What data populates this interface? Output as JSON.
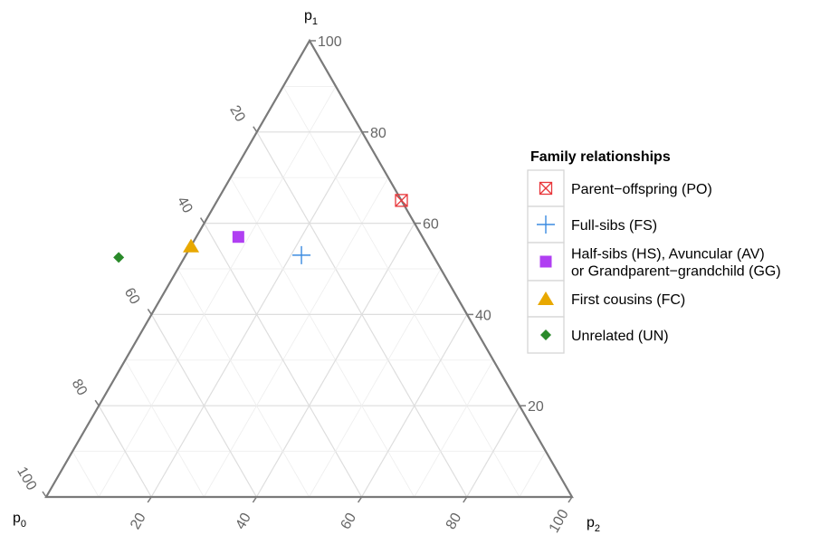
{
  "chart_data": {
    "type": "ternary-scatter",
    "axes": {
      "p0": {
        "label": "p",
        "sub": "0",
        "ticks": [
          20,
          40,
          60,
          80,
          100
        ],
        "tick_labels": [
          "20",
          "40",
          "60",
          "80",
          "100"
        ]
      },
      "p1": {
        "label": "p",
        "sub": "1",
        "ticks": [
          20,
          40,
          60,
          80,
          100
        ],
        "tick_labels": [
          "20",
          "40",
          "60",
          "80",
          "100"
        ]
      },
      "p2": {
        "label": "p",
        "sub": "2",
        "ticks": [
          20,
          40,
          60,
          80,
          100
        ],
        "tick_labels": [
          "20",
          "40",
          "60",
          "80",
          "100"
        ]
      }
    },
    "grid_step": 10,
    "grid": true,
    "legend": {
      "title": "Family relationships",
      "position": "right"
    },
    "points": [
      {
        "key": "PO",
        "lines": [
          "Parent−offspring (PO)"
        ],
        "p0": 0,
        "p1": 65,
        "p2": 35,
        "marker": "square-x",
        "color": "#e8363a"
      },
      {
        "key": "FS",
        "lines": [
          "Full-sibs (FS)"
        ],
        "p0": 25,
        "p1": 53,
        "p2": 22,
        "marker": "plus",
        "color": "#3b8be0"
      },
      {
        "key": "HS",
        "lines": [
          "Half-sibs (HS), Avuncular (AV)",
          "or Grandparent−grandchild (GG)"
        ],
        "p0": 35,
        "p1": 57,
        "p2": 8,
        "marker": "square",
        "color": "#b03ff2"
      },
      {
        "key": "FC",
        "lines": [
          "First cousins (FC)"
        ],
        "p0": 45,
        "p1": 55,
        "p2": 0,
        "marker": "triangle",
        "color": "#e8a800"
      },
      {
        "key": "UN",
        "lines": [
          "Unrelated (UN)"
        ],
        "p0": 60,
        "p1": 52.5,
        "p2": -12.5,
        "marker": "diamond",
        "color": "#2a8a2a"
      }
    ]
  }
}
